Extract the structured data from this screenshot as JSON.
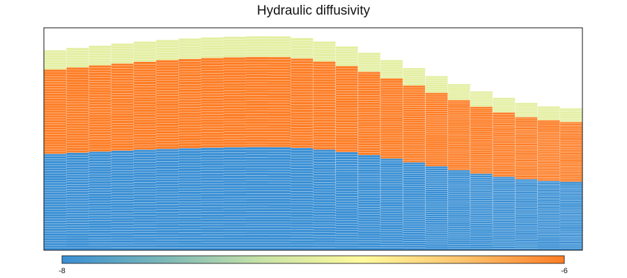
{
  "chart_data": {
    "type": "heatmap",
    "title": "Hydraulic diffusivity",
    "xlabel": "",
    "ylabel": "",
    "layers": [
      {
        "name": "",
        "value": -8,
        "count": 40
      },
      {
        "name": "",
        "value": -6,
        "count": 35
      },
      {
        "name": "",
        "value": -7,
        "count": 8
      }
    ],
    "colorbar": {
      "min": -8,
      "max": -6,
      "tick_labels": [
        "-8",
        "-6"
      ],
      "colors": [
        "#3a8fd4",
        "#7ab7b8",
        "#c8e3a6",
        "#fffa9d",
        "#fdc26c",
        "#fd7d25"
      ]
    },
    "grid": false
  }
}
